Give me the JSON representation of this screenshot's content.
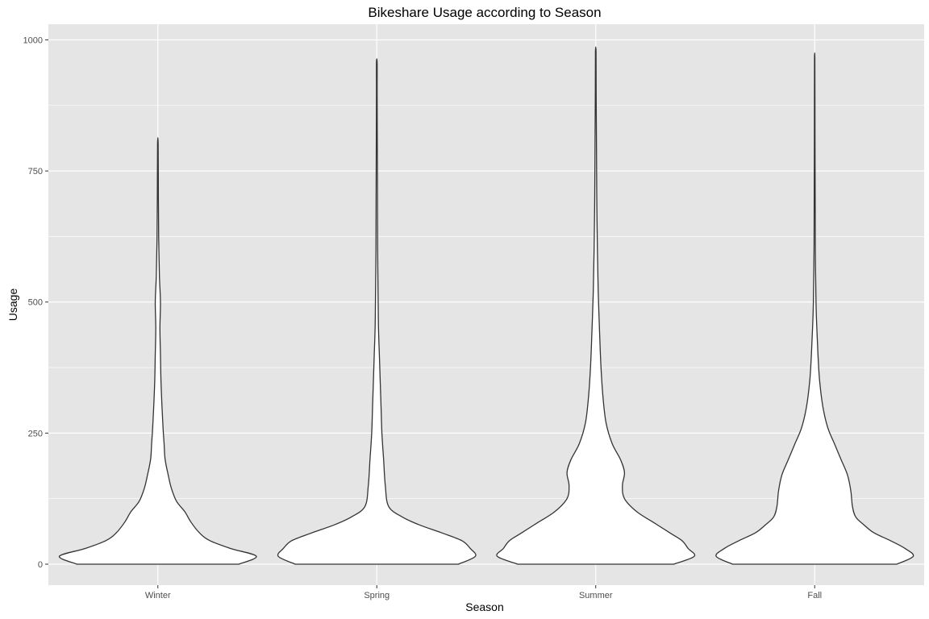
{
  "chart_data": {
    "type": "violin",
    "title": "Bikeshare Usage according to Season",
    "xlabel": "Season",
    "ylabel": "Usage",
    "categories": [
      "Winter",
      "Spring",
      "Summer",
      "Fall"
    ],
    "ylim": [
      -40,
      1030
    ],
    "yticks": [
      0,
      250,
      500,
      750,
      1000
    ],
    "ytick_labels": [
      "0",
      "250",
      "500",
      "750",
      "1000"
    ],
    "grid": true,
    "legend": "none",
    "violins": [
      {
        "category": "Winter",
        "min": 0,
        "max": 801,
        "profile": [
          [
            0,
            78
          ],
          [
            15,
            95
          ],
          [
            30,
            70
          ],
          [
            45,
            50
          ],
          [
            60,
            40
          ],
          [
            80,
            32
          ],
          [
            100,
            26
          ],
          [
            120,
            18
          ],
          [
            145,
            13
          ],
          [
            170,
            10
          ],
          [
            200,
            7
          ],
          [
            230,
            6
          ],
          [
            260,
            5
          ],
          [
            300,
            4
          ],
          [
            350,
            3
          ],
          [
            400,
            2.5
          ],
          [
            450,
            2
          ],
          [
            500,
            2.5
          ],
          [
            550,
            1.5
          ],
          [
            620,
            0.8
          ],
          [
            700,
            0.5
          ],
          [
            801,
            0.3
          ]
        ]
      },
      {
        "category": "Spring",
        "min": 0,
        "max": 957,
        "profile": [
          [
            0,
            48
          ],
          [
            15,
            58
          ],
          [
            30,
            55
          ],
          [
            45,
            50
          ],
          [
            60,
            38
          ],
          [
            75,
            25
          ],
          [
            90,
            15
          ],
          [
            110,
            7
          ],
          [
            150,
            5
          ],
          [
            200,
            4
          ],
          [
            250,
            3
          ],
          [
            300,
            2.5
          ],
          [
            350,
            2
          ],
          [
            400,
            1.5
          ],
          [
            450,
            1
          ],
          [
            500,
            0.8
          ],
          [
            600,
            0.5
          ],
          [
            700,
            0.4
          ],
          [
            800,
            0.3
          ],
          [
            900,
            0.2
          ],
          [
            957,
            0.2
          ]
        ]
      },
      {
        "category": "Summer",
        "min": 0,
        "max": 977,
        "profile": [
          [
            0,
            38
          ],
          [
            15,
            48
          ],
          [
            30,
            45
          ],
          [
            45,
            42
          ],
          [
            60,
            36
          ],
          [
            80,
            28
          ],
          [
            100,
            20
          ],
          [
            125,
            14
          ],
          [
            150,
            13
          ],
          [
            175,
            14
          ],
          [
            200,
            12
          ],
          [
            230,
            8
          ],
          [
            270,
            5
          ],
          [
            320,
            3.5
          ],
          [
            380,
            2.5
          ],
          [
            450,
            1.8
          ],
          [
            520,
            1.2
          ],
          [
            600,
            0.8
          ],
          [
            700,
            0.5
          ],
          [
            800,
            0.35
          ],
          [
            900,
            0.2
          ],
          [
            977,
            0.15
          ]
        ]
      },
      {
        "category": "Fall",
        "min": 0,
        "max": 967,
        "profile": [
          [
            0,
            50
          ],
          [
            15,
            60
          ],
          [
            30,
            55
          ],
          [
            45,
            46
          ],
          [
            60,
            36
          ],
          [
            75,
            30
          ],
          [
            90,
            25
          ],
          [
            110,
            23
          ],
          [
            140,
            22
          ],
          [
            170,
            20
          ],
          [
            200,
            16
          ],
          [
            230,
            12
          ],
          [
            260,
            8
          ],
          [
            300,
            5
          ],
          [
            350,
            3
          ],
          [
            400,
            2
          ],
          [
            450,
            1.3
          ],
          [
            500,
            0.8
          ],
          [
            600,
            0.4
          ],
          [
            700,
            0.3
          ],
          [
            800,
            0.2
          ],
          [
            900,
            0.15
          ],
          [
            967,
            0.1
          ]
        ]
      }
    ]
  },
  "colors": {
    "panel_background": "#e5e5e5",
    "grid_line": "#ffffff",
    "violin_fill": "#ffffff",
    "violin_stroke": "#333333",
    "tick_label": "#4d4d4d"
  }
}
